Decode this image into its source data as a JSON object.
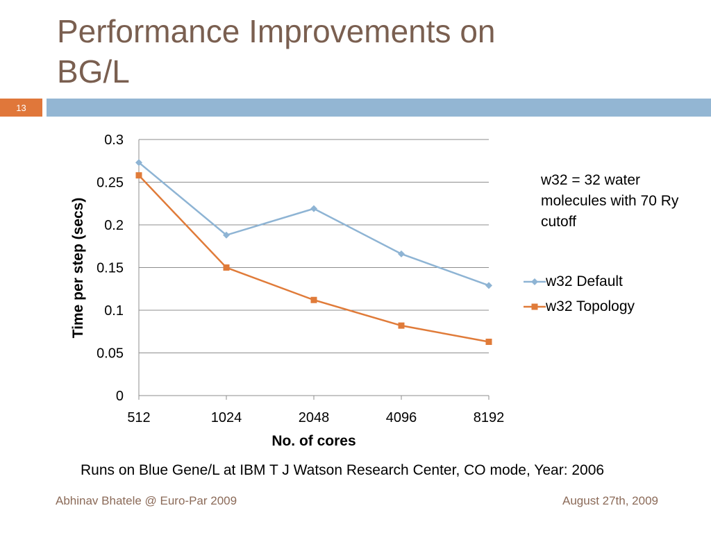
{
  "slide": {
    "title_line1": "Performance Improvements on",
    "title_line2": "BG/L",
    "number": "13",
    "note": "w32 = 32 water molecules with 70 Ry cutoff",
    "caption": "Runs on Blue Gene/L at IBM T J Watson Research Center, CO mode, Year: 2006",
    "footer_left": "Abhinav Bhatele @ Euro-Par 2009",
    "footer_right": "August 27th, 2009"
  },
  "colors": {
    "title": "#7a5f50",
    "accent_orange": "#e0773a",
    "header_blue": "#93b6d3",
    "series_default": "#8eb4d4",
    "series_topology": "#e07b39"
  },
  "chart_data": {
    "type": "line",
    "categories": [
      "512",
      "1024",
      "2048",
      "4096",
      "8192"
    ],
    "series": [
      {
        "name": "w32 Default",
        "values": [
          0.273,
          0.188,
          0.219,
          0.166,
          0.129
        ],
        "marker": "diamond"
      },
      {
        "name": "w32 Topology",
        "values": [
          0.258,
          0.15,
          0.112,
          0.082,
          0.063
        ],
        "marker": "square"
      }
    ],
    "xlabel": "No. of cores",
    "ylabel": "Time per step (secs)",
    "ylim": [
      0,
      0.3
    ],
    "yticks": [
      "0",
      "0.05",
      "0.1",
      "0.15",
      "0.2",
      "0.25",
      "0.3"
    ],
    "grid": true,
    "legend": "right"
  }
}
